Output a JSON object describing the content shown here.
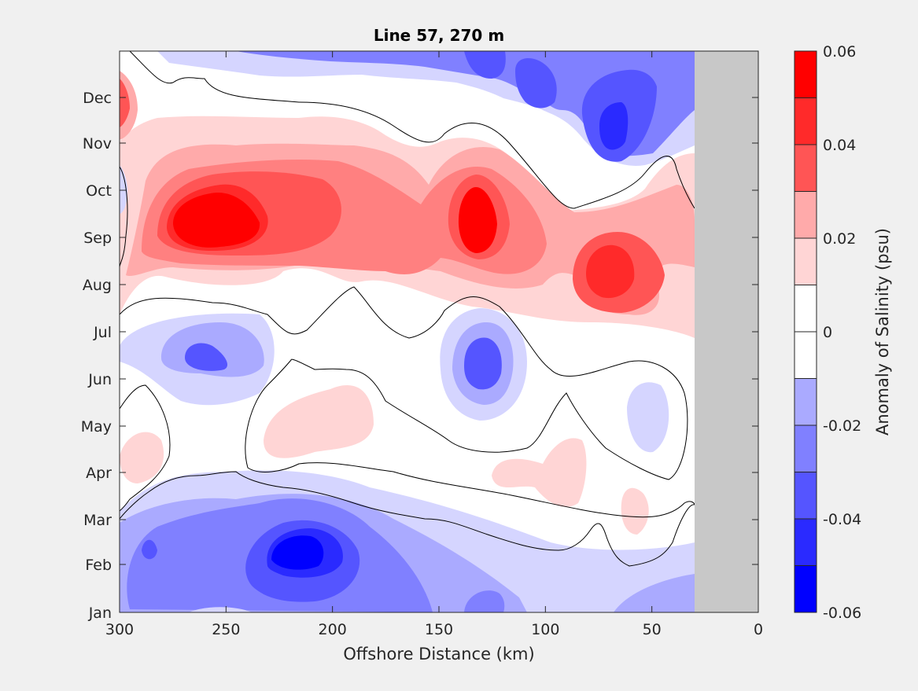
{
  "chart_data": {
    "type": "heatmap",
    "title": "Line 57, 270 m",
    "xlabel": "Offshore Distance (km)",
    "ylabel": "",
    "xlim": [
      300,
      0
    ],
    "x_reversed": true,
    "x_ticks": [
      300,
      250,
      200,
      150,
      100,
      50,
      0
    ],
    "y_ticks": [
      "Jan",
      "Feb",
      "Mar",
      "Apr",
      "May",
      "Jun",
      "Jul",
      "Aug",
      "Sep",
      "Oct",
      "Nov",
      "Dec"
    ],
    "no_data_region_km": [
      0,
      30
    ],
    "colorbar": {
      "label": "Anomaly of Salinity (psu)",
      "range": [
        -0.06,
        0.06
      ],
      "tick_labels": [
        "0.06",
        "0.04",
        "0.02",
        "0",
        "-0.02",
        "-0.04",
        "-0.06"
      ],
      "levels": [
        -0.06,
        -0.05,
        -0.04,
        -0.03,
        -0.02,
        -0.01,
        0,
        0.01,
        0.02,
        0.03,
        0.04,
        0.05,
        0.06
      ],
      "colors": [
        "#0000ff",
        "#2a2aff",
        "#5555ff",
        "#8080ff",
        "#aaaaff",
        "#d5d5ff",
        "#ffffff",
        "#ffffff",
        "#ffd5d5",
        "#ffaaaa",
        "#ff8080",
        "#ff5555",
        "#ff2a2a",
        "#ff0000"
      ]
    },
    "features": [
      {
        "kind": "positive",
        "peak": 0.055,
        "x_km": 255,
        "month": "Sep",
        "span": "300-30 km, Aug-Oct"
      },
      {
        "kind": "positive",
        "peak": 0.055,
        "x_km": 133,
        "month": "Sep"
      },
      {
        "kind": "positive",
        "peak": 0.045,
        "x_km": 70,
        "month": "Aug"
      },
      {
        "kind": "positive",
        "peak": 0.045,
        "x_km": 300,
        "month": "Dec"
      },
      {
        "kind": "negative",
        "peak": -0.055,
        "x_km": 220,
        "month": "Feb"
      },
      {
        "kind": "negative",
        "peak": -0.045,
        "x_km": 65,
        "month": "Dec"
      },
      {
        "kind": "negative",
        "peak": -0.035,
        "x_km": 257,
        "month": "Jun"
      },
      {
        "kind": "negative",
        "peak": -0.035,
        "x_km": 133,
        "month": "Jun"
      },
      {
        "kind": "positive",
        "peak": 0.015,
        "x_km": 190,
        "month": "May"
      },
      {
        "kind": "positive",
        "peak": 0.015,
        "x_km": 100,
        "month": "Apr"
      },
      {
        "kind": "negative",
        "peak": -0.015,
        "x_km": 50,
        "month": "May"
      }
    ]
  }
}
